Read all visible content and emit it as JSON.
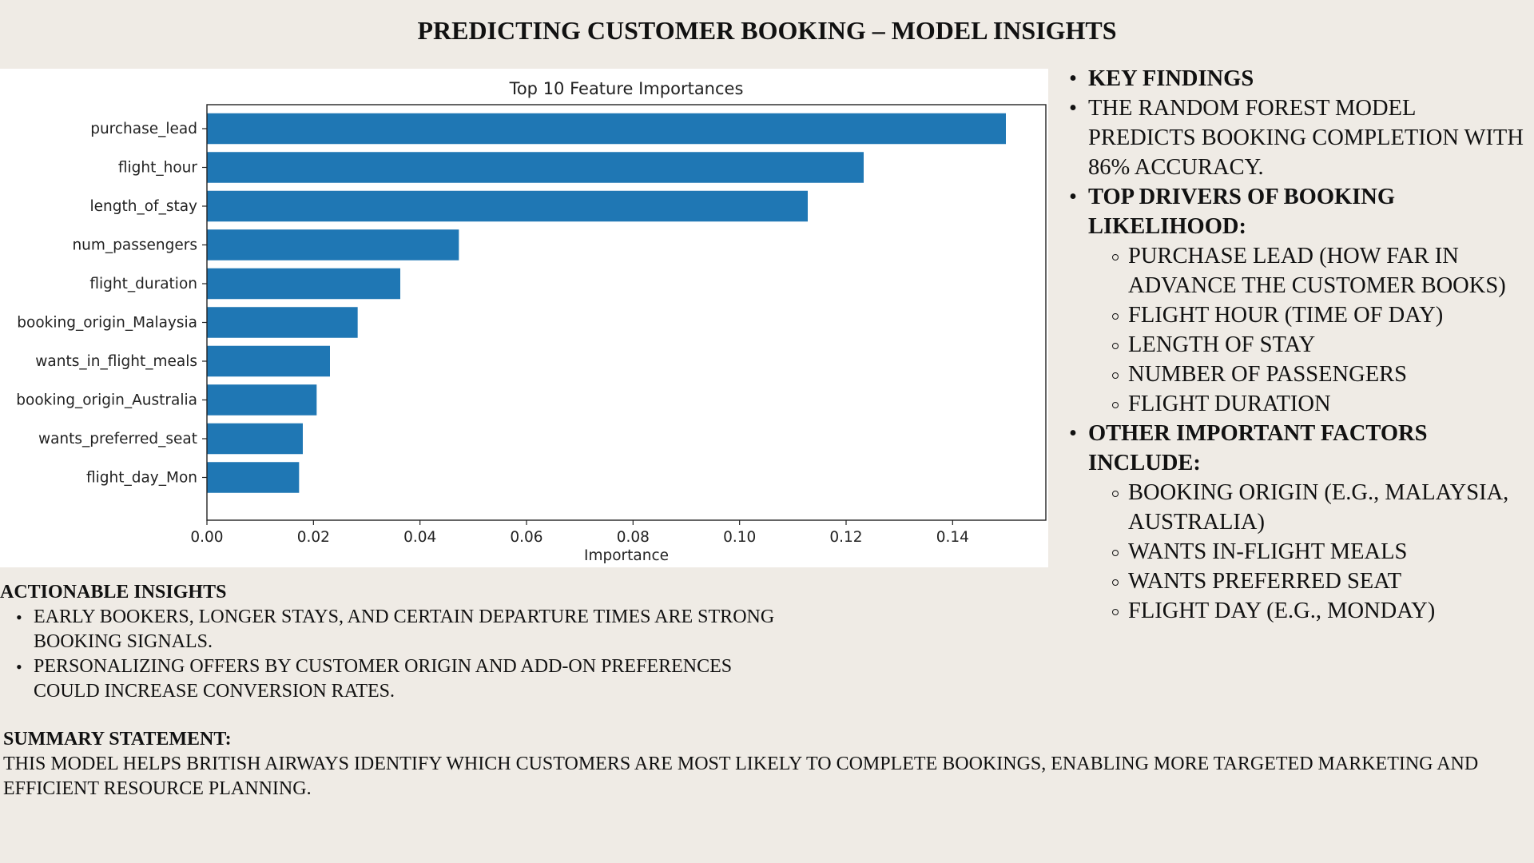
{
  "slide": {
    "title": "PREDICTING CUSTOMER BOOKING – MODEL INSIGHTS"
  },
  "chart_data": {
    "type": "bar",
    "orientation": "horizontal",
    "title": "Top 10 Feature Importances",
    "xlabel": "Importance",
    "ylabel": "",
    "categories": [
      "purchase_lead",
      "flight_hour",
      "length_of_stay",
      "num_passengers",
      "flight_duration",
      "booking_origin_Malaysia",
      "wants_in_flight_meals",
      "booking_origin_Australia",
      "wants_preferred_seat",
      "flight_day_Mon"
    ],
    "values": [
      0.15,
      0.1233,
      0.1128,
      0.0473,
      0.0363,
      0.0283,
      0.0231,
      0.0206,
      0.018,
      0.0173
    ],
    "xlim": [
      0,
      0.1575
    ],
    "xticks": [
      "0.00",
      "0.02",
      "0.04",
      "0.06",
      "0.08",
      "0.10",
      "0.12",
      "0.14"
    ],
    "grid": false,
    "legend": "none",
    "bar_color": "#1f77b4"
  },
  "key_panel": {
    "items": [
      {
        "text": "KEY FINDINGS",
        "bold": true,
        "sub": []
      },
      {
        "text": "THE RANDOM FOREST MODEL PREDICTS BOOKING COMPLETION WITH 86% ACCURACY.",
        "bold": false,
        "sub": []
      },
      {
        "text": "TOP DRIVERS OF BOOKING LIKELIHOOD:",
        "bold": true,
        "sub": [
          "PURCHASE LEAD (HOW FAR IN ADVANCE THE CUSTOMER BOOKS)",
          "FLIGHT HOUR (TIME OF DAY)",
          "LENGTH OF STAY",
          "NUMBER OF PASSENGERS",
          "FLIGHT DURATION"
        ]
      },
      {
        "text": "OTHER IMPORTANT FACTORS INCLUDE:",
        "bold": true,
        "sub": [
          "BOOKING ORIGIN (E.G., MALAYSIA, AUSTRALIA)",
          "WANTS IN-FLIGHT MEALS",
          "WANTS PREFERRED SEAT",
          "FLIGHT DAY (E.G., MONDAY)"
        ]
      }
    ]
  },
  "actionable": {
    "heading": "ACTIONABLE INSIGHTS",
    "items": [
      "EARLY BOOKERS, LONGER STAYS, AND CERTAIN DEPARTURE TIMES ARE STRONG BOOKING SIGNALS.",
      "PERSONALIZING OFFERS BY CUSTOMER ORIGIN AND ADD-ON PREFERENCES COULD INCREASE CONVERSION RATES."
    ]
  },
  "summary": {
    "heading": "SUMMARY STATEMENT:",
    "text": "THIS MODEL HELPS BRITISH AIRWAYS IDENTIFY WHICH CUSTOMERS ARE MOST LIKELY TO COMPLETE BOOKINGS, ENABLING MORE TARGETED MARKETING AND EFFICIENT RESOURCE PLANNING."
  }
}
